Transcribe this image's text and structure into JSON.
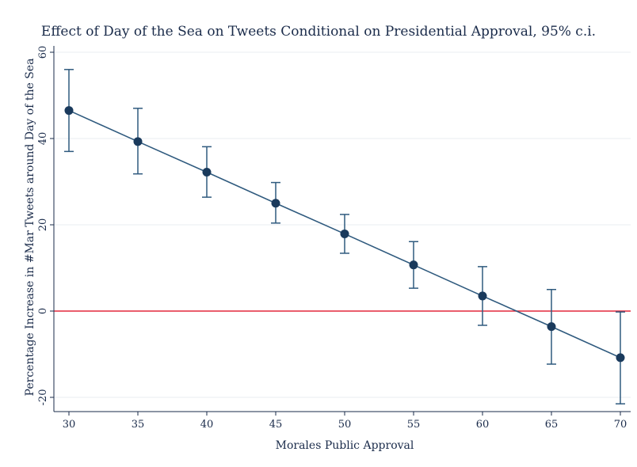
{
  "colors": {
    "series": "#2f5a7e",
    "points": "#1a3a5c",
    "reference_line": "#e4283c",
    "grid": "#e8eef2",
    "axis": "#1a2b4a"
  },
  "chart_data": {
    "type": "line",
    "title": "Effect of Day of the Sea on Tweets Conditional on Presidential Approval, 95% c.i.",
    "xlabel": "Morales Public Approval",
    "ylabel": "Percentage Increase in #Mar Tweets around Day of the Sea",
    "xlim": [
      30,
      70
    ],
    "ylim": [
      -20,
      60
    ],
    "xticks": [
      30,
      35,
      40,
      45,
      50,
      55,
      60,
      65,
      70
    ],
    "yticks": [
      -20,
      0,
      20,
      40,
      60
    ],
    "grid": true,
    "reference_line_y": 0,
    "series": [
      {
        "x": [
          30,
          35,
          40,
          45,
          50,
          55,
          60,
          65,
          70
        ],
        "y": [
          46.5,
          39.3,
          32.2,
          25.0,
          17.9,
          10.7,
          3.5,
          -3.6,
          -10.8
        ],
        "ci_lower": [
          37.0,
          31.8,
          26.4,
          20.4,
          13.4,
          5.3,
          -3.3,
          -12.3,
          -21.5
        ],
        "ci_upper": [
          56.0,
          47.0,
          38.1,
          29.8,
          22.4,
          16.1,
          10.3,
          5.0,
          -0.2
        ]
      }
    ]
  }
}
